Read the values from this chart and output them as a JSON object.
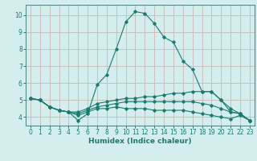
{
  "xlabel": "Humidex (Indice chaleur)",
  "bg_color": "#d4eeee",
  "grid_color": "#c8b8b8",
  "line_color": "#1a7a6e",
  "axis_color": "#5a8a8a",
  "xlim": [
    -0.5,
    23.5
  ],
  "ylim": [
    3.5,
    10.6
  ],
  "xticks": [
    0,
    1,
    2,
    3,
    4,
    5,
    6,
    7,
    8,
    9,
    10,
    11,
    12,
    13,
    14,
    15,
    16,
    17,
    18,
    19,
    20,
    21,
    22,
    23
  ],
  "yticks": [
    4,
    5,
    6,
    7,
    8,
    9,
    10
  ],
  "lines": [
    {
      "x": [
        0,
        1,
        2,
        3,
        4,
        5,
        6,
        7,
        8,
        9,
        10,
        11,
        12,
        13,
        14,
        15,
        16,
        17,
        18,
        19,
        20,
        21,
        22,
        23
      ],
      "y": [
        5.1,
        5.0,
        4.6,
        4.4,
        4.3,
        3.8,
        4.2,
        5.9,
        6.5,
        8.0,
        9.6,
        10.2,
        10.1,
        9.5,
        8.7,
        8.4,
        7.3,
        6.8,
        5.5,
        5.5,
        5.0,
        4.3,
        4.2,
        3.8
      ]
    },
    {
      "x": [
        0,
        1,
        2,
        3,
        4,
        5,
        6,
        7,
        8,
        9,
        10,
        11,
        12,
        13,
        14,
        15,
        16,
        17,
        18,
        19,
        20,
        21,
        22,
        23
      ],
      "y": [
        5.1,
        5.0,
        4.6,
        4.4,
        4.3,
        4.3,
        4.5,
        4.8,
        4.9,
        5.0,
        5.1,
        5.1,
        5.2,
        5.2,
        5.3,
        5.4,
        5.4,
        5.5,
        5.5,
        5.5,
        5.0,
        4.5,
        4.2,
        3.8
      ]
    },
    {
      "x": [
        0,
        1,
        2,
        3,
        4,
        5,
        6,
        7,
        8,
        9,
        10,
        11,
        12,
        13,
        14,
        15,
        16,
        17,
        18,
        19,
        20,
        21,
        22,
        23
      ],
      "y": [
        5.1,
        5.0,
        4.6,
        4.4,
        4.3,
        4.2,
        4.4,
        4.6,
        4.7,
        4.8,
        4.9,
        4.9,
        4.9,
        4.9,
        4.9,
        4.9,
        4.9,
        4.9,
        4.8,
        4.7,
        4.5,
        4.3,
        4.2,
        3.8
      ]
    },
    {
      "x": [
        0,
        1,
        2,
        3,
        4,
        5,
        6,
        7,
        8,
        9,
        10,
        11,
        12,
        13,
        14,
        15,
        16,
        17,
        18,
        19,
        20,
        21,
        22,
        23
      ],
      "y": [
        5.1,
        5.0,
        4.6,
        4.4,
        4.3,
        4.1,
        4.3,
        4.5,
        4.5,
        4.6,
        4.5,
        4.5,
        4.5,
        4.4,
        4.4,
        4.4,
        4.4,
        4.3,
        4.2,
        4.1,
        4.0,
        3.9,
        4.1,
        3.8
      ]
    }
  ]
}
